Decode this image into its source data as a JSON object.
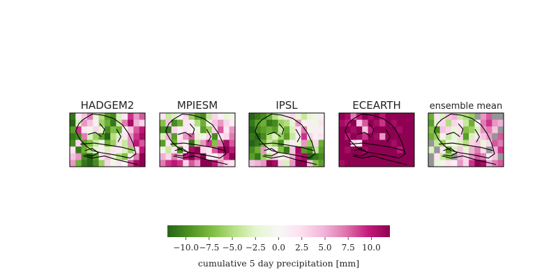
{
  "chart_data": {
    "type": "heatmap",
    "colormap": "PiYG (reversed): dark green = negative, white = 0, magenta = positive; grey = no agreement",
    "missing_color": "#969696",
    "panels": [
      {
        "title": "HADGEM2",
        "grid": [
          [
            -11,
            1,
            4,
            7,
            -2,
            -5,
            -9,
            -10,
            -3,
            2,
            9,
            6,
            8
          ],
          [
            -12,
            -3,
            6,
            4,
            1,
            -6,
            -8,
            -11,
            -4,
            7,
            11,
            5,
            3
          ],
          [
            -9,
            9,
            2,
            -1,
            3,
            -2,
            -10,
            -7,
            -8,
            1,
            4,
            8,
            10
          ],
          [
            -11,
            -10,
            7,
            -3,
            -6,
            -9,
            -12,
            -5,
            -3,
            2,
            6,
            9,
            11
          ],
          [
            -10,
            3,
            -9,
            -7,
            -4,
            -1,
            -8,
            -6,
            2,
            -4,
            6,
            10,
            8
          ],
          [
            2,
            -11,
            -8,
            -5,
            -2,
            1,
            -3,
            2,
            1,
            -3,
            -6,
            3,
            10
          ],
          [
            4,
            6,
            -10,
            -12,
            -9,
            2,
            4,
            -2,
            -5,
            -7,
            1,
            7,
            12
          ],
          [
            6,
            -8,
            -11,
            -12,
            -10,
            -6,
            3,
            -1,
            2,
            0,
            8,
            11,
            12
          ]
        ]
      },
      {
        "title": "MPIESM",
        "grid": [
          [
            2,
            -4,
            -3,
            1,
            3,
            -6,
            -9,
            -10,
            -4,
            3,
            1,
            -2,
            -1
          ],
          [
            -7,
            4,
            -10,
            -8,
            2,
            1,
            -5,
            -8,
            -2,
            4,
            6,
            3,
            1
          ],
          [
            -10,
            -11,
            3,
            1,
            2,
            1,
            -1,
            -9,
            -6,
            3,
            8,
            2,
            6
          ],
          [
            -3,
            5,
            -9,
            2,
            6,
            8,
            -2,
            -1,
            3,
            -10,
            2,
            3,
            7
          ],
          [
            -9,
            2,
            -8,
            3,
            1,
            -11,
            -4,
            6,
            9,
            -7,
            7,
            11,
            8
          ],
          [
            -1,
            -4,
            2,
            -10,
            2,
            11,
            12,
            3,
            2,
            8,
            11,
            12,
            10
          ],
          [
            5,
            3,
            7,
            4,
            10,
            12,
            9,
            12,
            1,
            1,
            4,
            9,
            12
          ],
          [
            7,
            9,
            10,
            9,
            3,
            8,
            6,
            12,
            12,
            10,
            6,
            3,
            2
          ]
        ]
      },
      {
        "title": "IPSL",
        "grid": [
          [
            -12,
            -11,
            -10,
            -8,
            -5,
            -3,
            2,
            3,
            -2,
            -4,
            -2,
            -1,
            1
          ],
          [
            -11,
            -9,
            -8,
            -11,
            -10,
            -6,
            -5,
            -2,
            6,
            -1,
            1,
            -1,
            2
          ],
          [
            -12,
            -10,
            -9,
            -8,
            -9,
            -4,
            -8,
            -3,
            2,
            7,
            -1,
            1,
            1
          ],
          [
            -11,
            -12,
            -10,
            -5,
            -3,
            -6,
            -9,
            -4,
            1,
            9,
            3,
            1,
            2
          ],
          [
            -12,
            -11,
            -8,
            -4,
            -6,
            -10,
            -3,
            1,
            -2,
            6,
            -6,
            3,
            -8
          ],
          [
            -10,
            -8,
            6,
            -1,
            2,
            -7,
            -11,
            4,
            11,
            -9,
            -10,
            -4,
            -9
          ],
          [
            -9,
            -11,
            -6,
            -4,
            3,
            -1,
            2,
            5,
            10,
            11,
            -12,
            -11,
            -10
          ],
          [
            4,
            5,
            6,
            12,
            11,
            3,
            -3,
            6,
            12,
            12,
            4,
            -7,
            -9
          ]
        ]
      },
      {
        "title": "ECEARTH",
        "grid": [
          [
            12,
            11,
            7,
            10,
            12,
            11,
            12,
            10,
            12,
            12,
            12,
            12,
            12
          ],
          [
            11,
            10,
            12,
            4,
            8,
            12,
            11,
            9,
            12,
            11,
            12,
            12,
            12
          ],
          [
            12,
            12,
            11,
            12,
            4,
            10,
            12,
            12,
            12,
            12,
            11,
            12,
            12
          ],
          [
            12,
            10,
            12,
            11,
            9,
            12,
            11,
            6,
            12,
            12,
            12,
            12,
            12
          ],
          [
            12,
            12,
            3,
            1,
            12,
            12,
            12,
            12,
            12,
            11,
            12,
            12,
            12
          ],
          [
            12,
            11,
            12,
            12,
            11,
            12,
            12,
            12,
            12,
            12,
            10,
            12,
            12
          ],
          [
            12,
            12,
            12,
            12,
            12,
            12,
            12,
            12,
            12,
            12,
            12,
            12,
            12
          ],
          [
            11,
            12,
            12,
            12,
            12,
            12,
            12,
            12,
            12,
            12,
            12,
            12,
            12
          ]
        ]
      },
      {
        "title": "ensemble mean",
        "grid": [
          [
            -8,
            2,
            -3,
            4,
            5,
            -4,
            -5,
            -6,
            null,
            6,
            8,
            null,
            null
          ],
          [
            -9,
            -2,
            3,
            -5,
            3,
            2,
            -4,
            -8,
            1,
            7,
            9,
            6,
            5
          ],
          [
            -7,
            -10,
            4,
            3,
            -2,
            2,
            -7,
            -6,
            -3,
            6,
            7,
            4,
            null
          ],
          [
            -8,
            -6,
            1,
            -4,
            -2,
            3,
            -9,
            -3,
            2,
            4,
            6,
            null,
            8
          ],
          [
            null,
            -4,
            -6,
            -2,
            -1,
            -3,
            -5,
            3,
            4,
            -2,
            3,
            8,
            7
          ],
          [
            -3,
            null,
            2,
            -9,
            -3,
            4,
            -2,
            5,
            7,
            3,
            null,
            5,
            9
          ],
          [
            null,
            2,
            -4,
            -6,
            null,
            5,
            3,
            6,
            8,
            7,
            1,
            4,
            null
          ],
          [
            null,
            -2,
            -1,
            2,
            1,
            6,
            3,
            9,
            12,
            11,
            5,
            7,
            8
          ]
        ]
      }
    ],
    "colorbar": {
      "label": "cumulative 5 day precipitation [mm]",
      "range": [
        -12,
        12
      ],
      "ticks": [
        -10,
        -7.5,
        -5,
        -2.5,
        0,
        2.5,
        5,
        7.5,
        10
      ],
      "tick_labels": [
        "−10.0",
        "−7.5",
        "−5.0",
        "−2.5",
        "0.0",
        "2.5",
        "5.0",
        "7.5",
        "10.0"
      ]
    }
  }
}
